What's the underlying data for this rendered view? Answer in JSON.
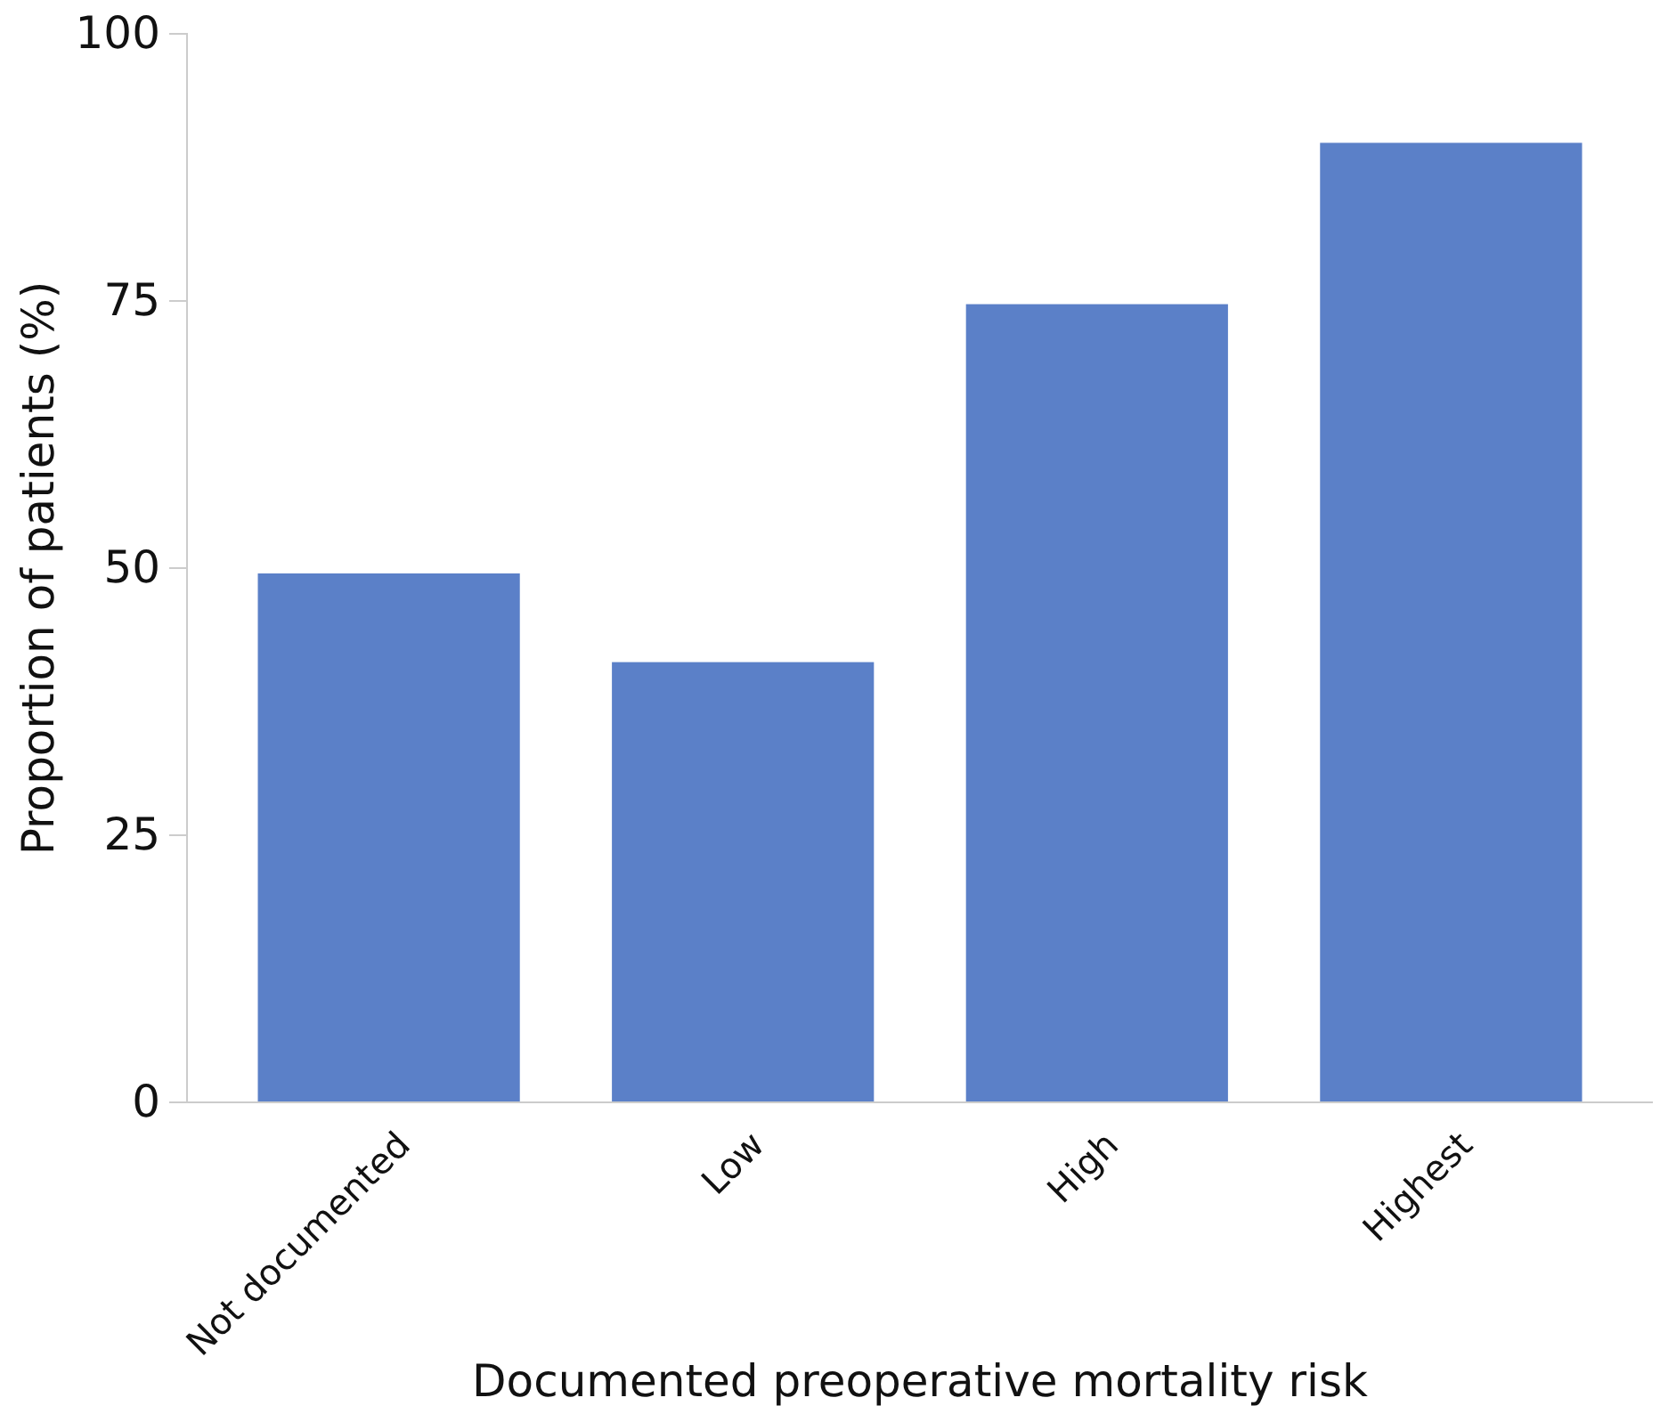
{
  "chart_data": {
    "type": "bar",
    "xlabel": "Documented preoperative mortality risk",
    "ylabel": "Proportion of patients (%)",
    "categories": [
      "Not documented",
      "Low",
      "High",
      "Highest"
    ],
    "values": [
      49.5,
      41.2,
      74.7,
      89.8
    ],
    "color": "#5b80c8",
    "ylim": [
      0,
      100
    ],
    "yticks": [
      0,
      25,
      50,
      75,
      100
    ],
    "grid": false
  }
}
